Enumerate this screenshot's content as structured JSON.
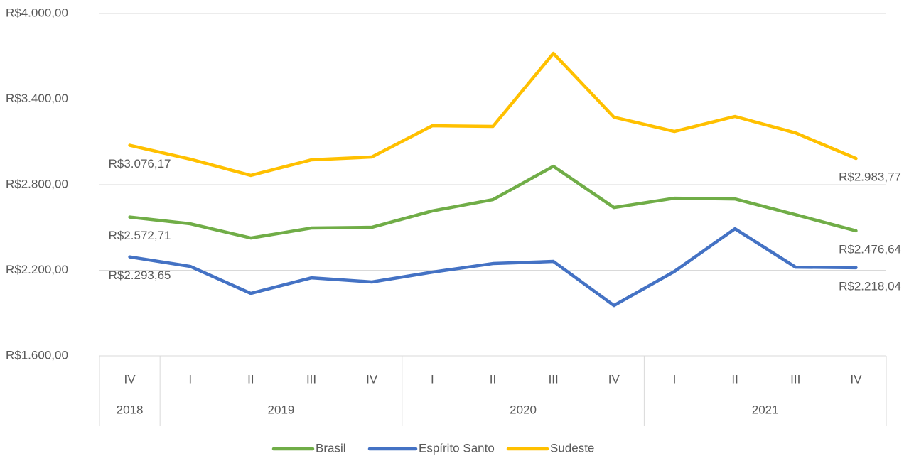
{
  "chart_data": {
    "type": "line",
    "categories": [
      "IV",
      "I",
      "II",
      "III",
      "IV",
      "I",
      "II",
      "III",
      "IV",
      "I",
      "II",
      "III",
      "IV"
    ],
    "category_groups": [
      {
        "label": "2018",
        "count": 1
      },
      {
        "label": "2019",
        "count": 4
      },
      {
        "label": "2020",
        "count": 4
      },
      {
        "label": "2021",
        "count": 4
      }
    ],
    "series": [
      {
        "name": "Brasil",
        "color": "#70ad47",
        "values": [
          2572.71,
          2526,
          2426,
          2496,
          2501,
          2616,
          2695,
          2929,
          2640,
          2705,
          2700,
          2590,
          2476.64
        ],
        "value_labels": [
          "R$2.572,71",
          null,
          null,
          null,
          null,
          null,
          null,
          null,
          null,
          null,
          null,
          null,
          "R$2.476,64"
        ]
      },
      {
        "name": "Espírito Santo",
        "color": "#4472c4",
        "values": [
          2293.65,
          2227,
          2038,
          2147,
          2118,
          2187,
          2247,
          2262,
          1953,
          2192,
          2491,
          2222,
          2218.04
        ],
        "value_labels": [
          "R$2.293,65",
          null,
          null,
          null,
          null,
          null,
          null,
          null,
          null,
          null,
          null,
          null,
          "R$2.218,04"
        ]
      },
      {
        "name": "Sudeste",
        "color": "#ffc000",
        "values": [
          3076.17,
          2979,
          2865,
          2974,
          2994,
          3213,
          3208,
          3721,
          3273,
          3173,
          3278,
          3163,
          2983.77
        ],
        "value_labels": [
          "R$3.076,17",
          null,
          null,
          null,
          null,
          null,
          null,
          null,
          null,
          null,
          null,
          null,
          "R$2.983,77"
        ]
      }
    ],
    "ylim": [
      1600,
      4000
    ],
    "yticks": [
      {
        "value": 1600,
        "label": "R$1.600,00"
      },
      {
        "value": 2200,
        "label": "R$2.200,00"
      },
      {
        "value": 2800,
        "label": "R$2.800,00"
      },
      {
        "value": 3400,
        "label": "R$3.400,00"
      },
      {
        "value": 4000,
        "label": "R$4.000,00"
      }
    ],
    "grid": true,
    "legend": "bottom"
  }
}
